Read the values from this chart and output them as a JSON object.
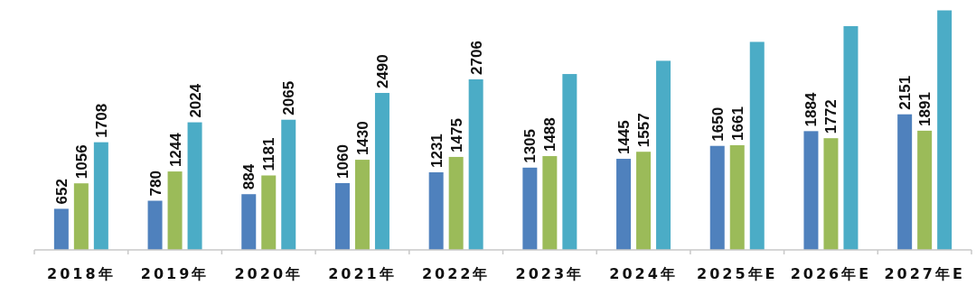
{
  "chart_data": {
    "type": "bar",
    "categories": [
      "2018年",
      "2019年",
      "2020年",
      "2021年",
      "2022年",
      "2023年",
      "2024年",
      "2025年E",
      "2026年E",
      "2027年E"
    ],
    "series": [
      {
        "color": "#4f81bd",
        "values": [
          652,
          780,
          884,
          1060,
          1231,
          1305,
          1445,
          1650,
          1884,
          2151
        ],
        "value_labels": [
          "652",
          "780",
          "884",
          "1060",
          "1231",
          "1305",
          "1445",
          "1650",
          "1884",
          "2151"
        ]
      },
      {
        "color": "#9bbb59",
        "values": [
          1056,
          1244,
          1181,
          1430,
          1475,
          1488,
          1557,
          1661,
          1772,
          1891
        ],
        "value_labels": [
          "1056",
          "1244",
          "1181",
          "1430",
          "1475",
          "1488",
          "1557",
          "1661",
          "1772",
          "1891"
        ]
      },
      {
        "color": "#4bacc6",
        "values": [
          1708,
          2024,
          2065,
          2490,
          2706,
          2790,
          3000,
          3300,
          3550,
          3800
        ],
        "value_labels": [
          "1708",
          "2024",
          "2065",
          "2490",
          "2706",
          null,
          null,
          null,
          null,
          null
        ]
      }
    ],
    "ylim": [
      0,
      3850
    ]
  }
}
